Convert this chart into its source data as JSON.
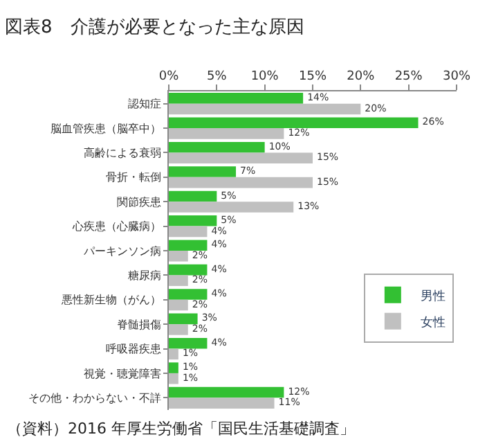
{
  "chart_data": {
    "type": "bar",
    "orientation": "horizontal",
    "title": "図表8　介護が必要となった主な原因",
    "categories": [
      "認知症",
      "脳血管疾患（脳卒中）",
      "高齢による衰弱",
      "骨折・転倒",
      "関節疾患",
      "心疾患（心臓病）",
      "パーキンソン病",
      "糖尿病",
      "悪性新生物（がん）",
      "脊髄損傷",
      "呼吸器疾患",
      "視覚・聴覚障害",
      "その他・わからない・不詳"
    ],
    "series": [
      {
        "name": "男性",
        "color": "#33c033",
        "values": [
          14,
          26,
          10,
          7,
          5,
          5,
          4,
          4,
          4,
          3,
          4,
          1,
          12
        ],
        "value_labels": [
          "14%",
          "26%",
          "10%",
          "7%",
          "5%",
          "5%",
          "4%",
          "4%",
          "4%",
          "3%",
          "4%",
          "1%",
          "12%"
        ]
      },
      {
        "name": "女性",
        "color": "#c0c0c0",
        "values": [
          20,
          12,
          15,
          15,
          13,
          4,
          2,
          2,
          2,
          2,
          1,
          1,
          11
        ],
        "value_labels": [
          "20%",
          "12%",
          "15%",
          "15%",
          "13%",
          "4%",
          "2%",
          "2%",
          "2%",
          "2%",
          "1%",
          "1%",
          "11%"
        ]
      }
    ],
    "xlim": [
      0,
      30
    ],
    "xticks": [
      {
        "value": 0,
        "label": "0%"
      },
      {
        "value": 5,
        "label": "5%"
      },
      {
        "value": 10,
        "label": "10%"
      },
      {
        "value": 15,
        "label": "15%"
      },
      {
        "value": 20,
        "label": "20%"
      },
      {
        "value": 25,
        "label": "25%"
      },
      {
        "value": 30,
        "label": "30%"
      }
    ],
    "grid": false,
    "legend": "right",
    "annotations": [
      "（資料）2016 年厚生労働省「国民生活基礎調査」"
    ]
  }
}
